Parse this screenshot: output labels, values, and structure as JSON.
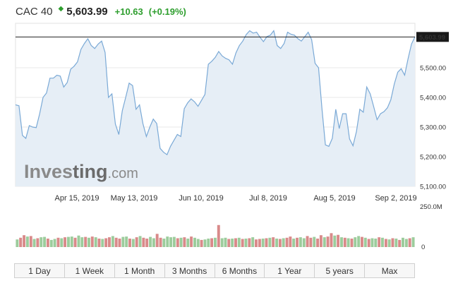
{
  "header": {
    "symbol": "CAC 40",
    "price": "5,603.99",
    "change": "+10.63",
    "change_pct": "(+0.19%)",
    "up_color": "#2e9e2e",
    "arrow_icon": "up-arrow-icon"
  },
  "watermark": {
    "part1": "Inves",
    "part2": "ting",
    "part3": ".com"
  },
  "chart_data": {
    "type": "area",
    "series": [
      {
        "values": [
          5375,
          5372,
          5272,
          5262,
          5305,
          5300,
          5298,
          5345,
          5400,
          5415,
          5465,
          5465,
          5475,
          5472,
          5435,
          5450,
          5495,
          5505,
          5520,
          5562,
          5582,
          5598,
          5575,
          5565,
          5580,
          5590,
          5552,
          5400,
          5412,
          5310,
          5275,
          5355,
          5400,
          5448,
          5440,
          5360,
          5375,
          5312,
          5268,
          5300,
          5327,
          5312,
          5228,
          5215,
          5207,
          5235,
          5255,
          5275,
          5268,
          5362,
          5382,
          5395,
          5385,
          5370,
          5390,
          5410,
          5512,
          5522,
          5535,
          5555,
          5540,
          5532,
          5527,
          5512,
          5550,
          5575,
          5590,
          5612,
          5625,
          5617,
          5620,
          5603,
          5588,
          5605,
          5610,
          5625,
          5575,
          5565,
          5582,
          5620,
          5613,
          5610,
          5598,
          5590,
          5605,
          5620,
          5595,
          5515,
          5500,
          5360,
          5240,
          5235,
          5262,
          5360,
          5295,
          5345,
          5345,
          5260,
          5237,
          5285,
          5360,
          5350,
          5435,
          5412,
          5370,
          5325,
          5345,
          5352,
          5365,
          5392,
          5445,
          5485,
          5497,
          5475,
          5530,
          5580,
          5603.99
        ]
      }
    ],
    "x_ticks": [
      "Apr 15, 2019",
      "May 13, 2019",
      "Jun 10, 2019",
      "Jul 8, 2019",
      "Aug 5, 2019",
      "Sep 2, 2019"
    ],
    "y_ticks": [
      "5,500.00",
      "5,400.00",
      "5,300.00",
      "5,200.00",
      "5,100.00"
    ],
    "y_values": [
      5500,
      5400,
      5300,
      5200,
      5100
    ],
    "ylim": [
      5100,
      5650
    ],
    "last_label": "5,603.99",
    "volume_label": "250.0M",
    "volume_zero": "0",
    "volume_max": 250,
    "volume": [
      {
        "v": 45,
        "up": 1
      },
      {
        "v": 55,
        "up": 0
      },
      {
        "v": 70,
        "up": 0
      },
      {
        "v": 62,
        "up": 1
      },
      {
        "v": 65,
        "up": 0
      },
      {
        "v": 48,
        "up": 1
      },
      {
        "v": 52,
        "up": 0
      },
      {
        "v": 58,
        "up": 1
      },
      {
        "v": 60,
        "up": 1
      },
      {
        "v": 50,
        "up": 0
      },
      {
        "v": 42,
        "up": 1
      },
      {
        "v": 48,
        "up": 1
      },
      {
        "v": 55,
        "up": 0
      },
      {
        "v": 52,
        "up": 1
      },
      {
        "v": 58,
        "up": 0
      },
      {
        "v": 60,
        "up": 1
      },
      {
        "v": 62,
        "up": 1
      },
      {
        "v": 55,
        "up": 0
      },
      {
        "v": 68,
        "up": 1
      },
      {
        "v": 58,
        "up": 1
      },
      {
        "v": 60,
        "up": 0
      },
      {
        "v": 55,
        "up": 1
      },
      {
        "v": 62,
        "up": 0
      },
      {
        "v": 58,
        "up": 1
      },
      {
        "v": 50,
        "up": 0
      },
      {
        "v": 48,
        "up": 1
      },
      {
        "v": 52,
        "up": 0
      },
      {
        "v": 58,
        "up": 0
      },
      {
        "v": 65,
        "up": 1
      },
      {
        "v": 55,
        "up": 0
      },
      {
        "v": 50,
        "up": 0
      },
      {
        "v": 60,
        "up": 1
      },
      {
        "v": 62,
        "up": 1
      },
      {
        "v": 50,
        "up": 0
      },
      {
        "v": 48,
        "up": 1
      },
      {
        "v": 58,
        "up": 0
      },
      {
        "v": 65,
        "up": 1
      },
      {
        "v": 55,
        "up": 0
      },
      {
        "v": 50,
        "up": 0
      },
      {
        "v": 60,
        "up": 1
      },
      {
        "v": 52,
        "up": 1
      },
      {
        "v": 78,
        "up": 0
      },
      {
        "v": 55,
        "up": 0
      },
      {
        "v": 50,
        "up": 1
      },
      {
        "v": 62,
        "up": 1
      },
      {
        "v": 58,
        "up": 1
      },
      {
        "v": 60,
        "up": 1
      },
      {
        "v": 52,
        "up": 0
      },
      {
        "v": 55,
        "up": 1
      },
      {
        "v": 58,
        "up": 0
      },
      {
        "v": 50,
        "up": 1
      },
      {
        "v": 62,
        "up": 0
      },
      {
        "v": 55,
        "up": 1
      },
      {
        "v": 48,
        "up": 1
      },
      {
        "v": 42,
        "up": 0
      },
      {
        "v": 45,
        "up": 1
      },
      {
        "v": 50,
        "up": 1
      },
      {
        "v": 52,
        "up": 0
      },
      {
        "v": 55,
        "up": 1
      },
      {
        "v": 130,
        "up": 0
      },
      {
        "v": 52,
        "up": 1
      },
      {
        "v": 55,
        "up": 1
      },
      {
        "v": 48,
        "up": 0
      },
      {
        "v": 50,
        "up": 1
      },
      {
        "v": 52,
        "up": 0
      },
      {
        "v": 55,
        "up": 1
      },
      {
        "v": 48,
        "up": 0
      },
      {
        "v": 50,
        "up": 1
      },
      {
        "v": 52,
        "up": 0
      },
      {
        "v": 58,
        "up": 1
      },
      {
        "v": 45,
        "up": 0
      },
      {
        "v": 48,
        "up": 0
      },
      {
        "v": 50,
        "up": 1
      },
      {
        "v": 52,
        "up": 0
      },
      {
        "v": 55,
        "up": 1
      },
      {
        "v": 58,
        "up": 0
      },
      {
        "v": 50,
        "up": 1
      },
      {
        "v": 48,
        "up": 0
      },
      {
        "v": 52,
        "up": 1
      },
      {
        "v": 55,
        "up": 0
      },
      {
        "v": 62,
        "up": 0
      },
      {
        "v": 50,
        "up": 1
      },
      {
        "v": 55,
        "up": 0
      },
      {
        "v": 58,
        "up": 1
      },
      {
        "v": 52,
        "up": 1
      },
      {
        "v": 65,
        "up": 0
      },
      {
        "v": 55,
        "up": 0
      },
      {
        "v": 60,
        "up": 1
      },
      {
        "v": 50,
        "up": 0
      },
      {
        "v": 70,
        "up": 0
      },
      {
        "v": 58,
        "up": 1
      },
      {
        "v": 62,
        "up": 0
      },
      {
        "v": 82,
        "up": 0
      },
      {
        "v": 68,
        "up": 1
      },
      {
        "v": 72,
        "up": 0
      },
      {
        "v": 58,
        "up": 1
      },
      {
        "v": 55,
        "up": 0
      },
      {
        "v": 52,
        "up": 1
      },
      {
        "v": 50,
        "up": 0
      },
      {
        "v": 58,
        "up": 1
      },
      {
        "v": 65,
        "up": 1
      },
      {
        "v": 60,
        "up": 0
      },
      {
        "v": 55,
        "up": 1
      },
      {
        "v": 48,
        "up": 0
      },
      {
        "v": 52,
        "up": 1
      },
      {
        "v": 50,
        "up": 1
      },
      {
        "v": 58,
        "up": 0
      },
      {
        "v": 55,
        "up": 1
      },
      {
        "v": 48,
        "up": 0
      },
      {
        "v": 45,
        "up": 1
      },
      {
        "v": 52,
        "up": 0
      },
      {
        "v": 50,
        "up": 1
      },
      {
        "v": 42,
        "up": 0
      },
      {
        "v": 55,
        "up": 1
      },
      {
        "v": 48,
        "up": 1
      },
      {
        "v": 52,
        "up": 0
      },
      {
        "v": 58,
        "up": 1
      }
    ],
    "colors": {
      "line": "#7aa9d6",
      "area": "#e6eef6",
      "vol_up": "#9ccc9c",
      "vol_down": "#d98a8a",
      "grid": "#e9e9e9",
      "price_line": "#222222"
    }
  },
  "tabs": [
    "1 Day",
    "1 Week",
    "1 Month",
    "3 Months",
    "6 Months",
    "1 Year",
    "5 years",
    "Max"
  ]
}
